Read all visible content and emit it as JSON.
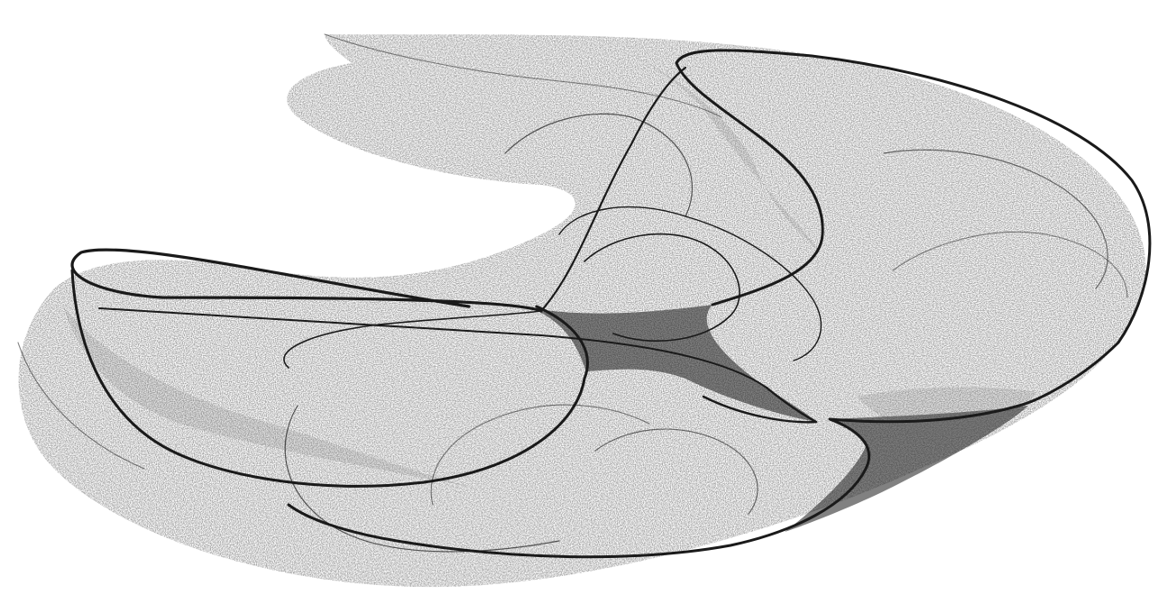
{
  "figure": {
    "subject": "strange-attractor-point-cloud",
    "background_color": "#ffffff",
    "ink_color": "#1a1a1a",
    "dust_color": "#6e6e6e"
  }
}
